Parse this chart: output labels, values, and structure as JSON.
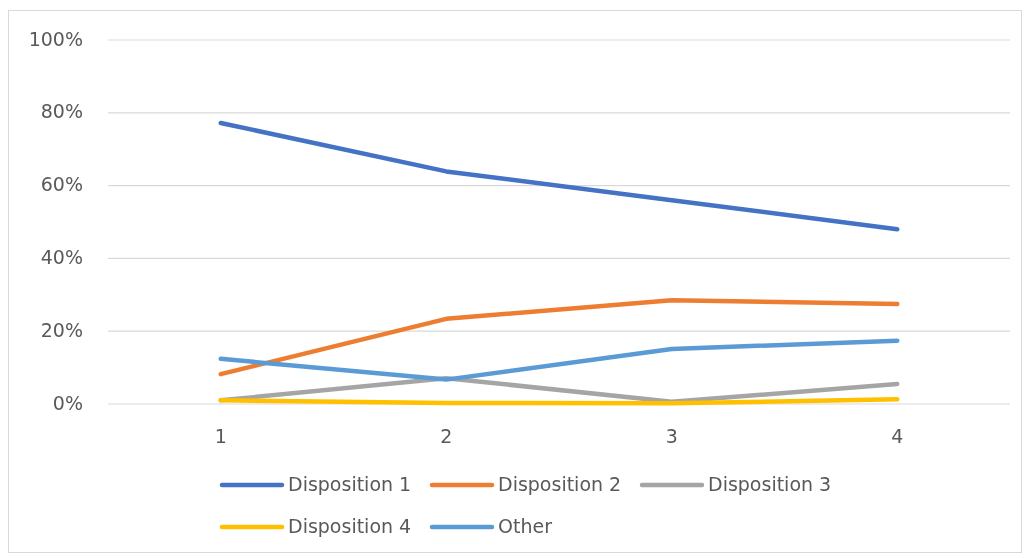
{
  "chart_data": {
    "type": "line",
    "categories": [
      "1",
      "2",
      "3",
      "4"
    ],
    "series": [
      {
        "name": "Disposition 1",
        "color": "#4472c4",
        "values": [
          77.2,
          63.9,
          56,
          48
        ]
      },
      {
        "name": "Disposition 2",
        "color": "#ed7d31",
        "values": [
          8.2,
          23.4,
          28.5,
          27.5
        ]
      },
      {
        "name": "Disposition 3",
        "color": "#a5a5a5",
        "values": [
          1,
          7.1,
          0.6,
          5.5
        ]
      },
      {
        "name": "Disposition 4",
        "color": "#ffc000",
        "values": [
          1,
          0.3,
          0.2,
          1.3
        ]
      },
      {
        "name": "Other",
        "color": "#5b9bd5",
        "values": [
          12.4,
          6.7,
          15.1,
          17.4
        ]
      }
    ],
    "ylim": [
      0,
      100
    ],
    "yticks": [
      {
        "value": 0,
        "label": "0%"
      },
      {
        "value": 20,
        "label": "20%"
      },
      {
        "value": 40,
        "label": "40%"
      },
      {
        "value": 60,
        "label": "60%"
      },
      {
        "value": 80,
        "label": "80%"
      },
      {
        "value": 100,
        "label": "100%"
      }
    ],
    "grid": "y",
    "legend": "bottom",
    "marker": "none"
  }
}
